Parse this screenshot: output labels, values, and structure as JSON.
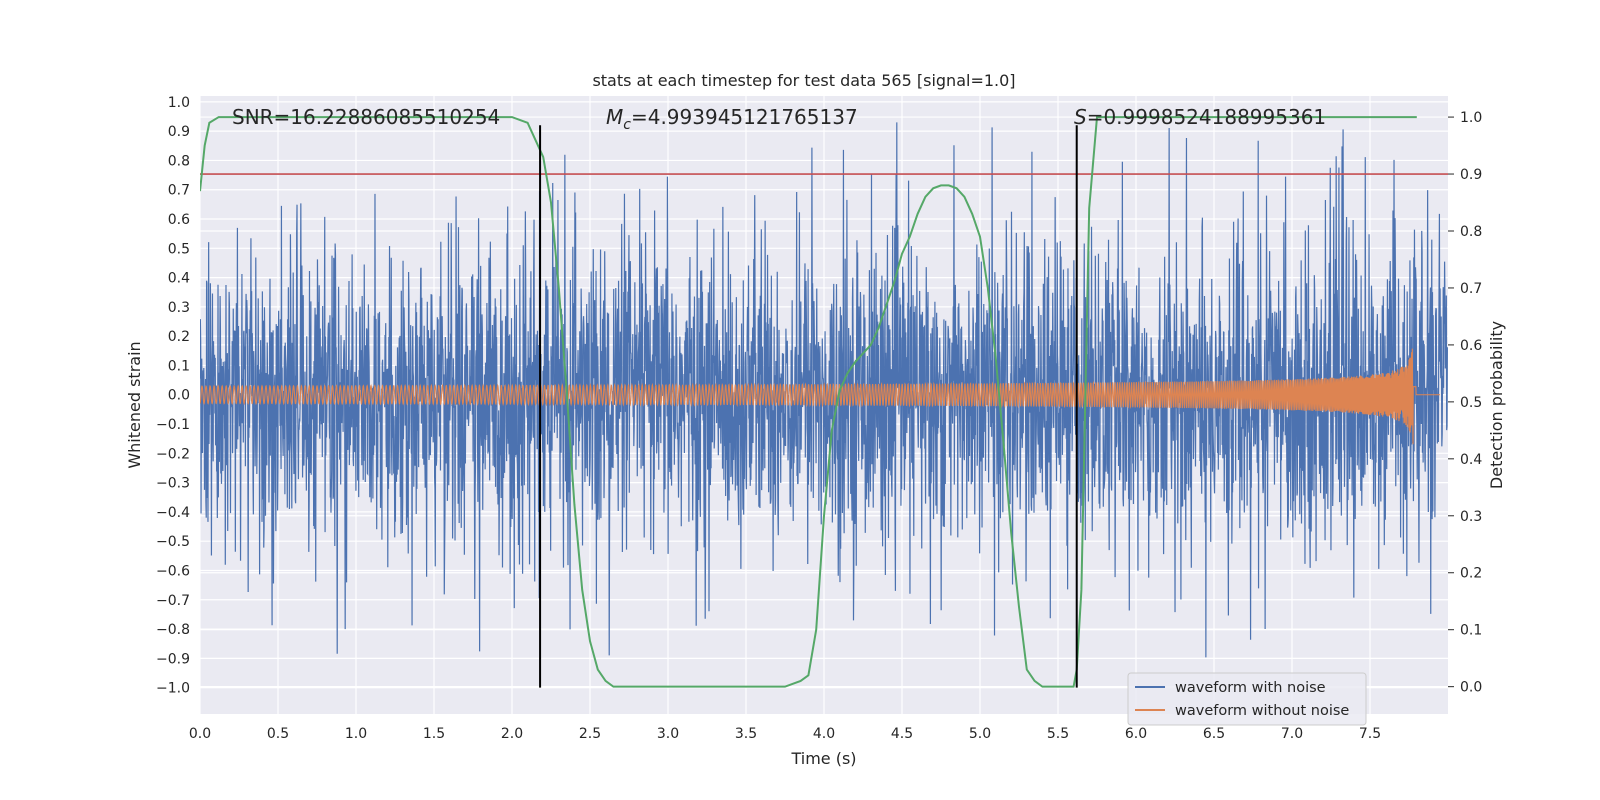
{
  "chart_data": {
    "type": "line",
    "title": "stats at each timestep for test data 565 [signal=1.0]",
    "xlabel": "Time (s)",
    "ylabel_left": "Whitened strain",
    "ylabel_right": "Detection probability",
    "xlim": [
      0.0,
      8.0
    ],
    "ylim_left": [
      -1.09,
      1.02
    ],
    "ylim_right": [
      -0.048,
      1.037
    ],
    "x_ticks": [
      "0.0",
      "0.5",
      "1.0",
      "1.5",
      "2.0",
      "2.5",
      "3.0",
      "3.5",
      "4.0",
      "4.5",
      "5.0",
      "5.5",
      "6.0",
      "6.5",
      "7.0",
      "7.5"
    ],
    "y_ticks_left": [
      "1.0",
      "0.9",
      "0.8",
      "0.7",
      "0.6",
      "0.5",
      "0.4",
      "0.3",
      "0.2",
      "0.1",
      "0.0",
      "−0.1",
      "−0.2",
      "−0.3",
      "−0.4",
      "−0.5",
      "−0.6",
      "−0.7",
      "−0.8",
      "−0.9",
      "−1.0"
    ],
    "y_ticks_right": [
      "1.0",
      "0.9",
      "0.8",
      "0.7",
      "0.6",
      "0.5",
      "0.4",
      "0.3",
      "0.2",
      "0.1",
      "0.0"
    ],
    "annotations": {
      "snr": "SNR=16.22886085510254",
      "mc_symbol": "M",
      "mc_sub": "c",
      "mc_value": "=4.993945121765137",
      "s_symbol": "S",
      "s_value": "=0.9998524188995361"
    },
    "vertical_lines_x": [
      2.18,
      5.62
    ],
    "vertical_lines_range": [
      -1.0,
      0.92
    ],
    "threshold": {
      "value": 0.9,
      "axis": "right",
      "color": "#c44e52"
    },
    "noise_envelope": {
      "typical_amplitude": 0.45,
      "peak_amplitude": 0.93
    },
    "chirp": {
      "amplitude_start": 0.03,
      "amplitude_peak": 0.3,
      "merger_time": 7.78
    },
    "detection_probability": {
      "x": [
        0.0,
        0.03,
        0.06,
        0.12,
        0.2,
        1.0,
        1.5,
        2.0,
        2.1,
        2.2,
        2.25,
        2.3,
        2.35,
        2.4,
        2.45,
        2.5,
        2.55,
        2.6,
        2.65,
        2.75,
        3.0,
        3.5,
        3.75,
        3.85,
        3.9,
        3.95,
        4.0,
        4.05,
        4.1,
        4.15,
        4.2,
        4.3,
        4.35,
        4.4,
        4.45,
        4.5,
        4.55,
        4.6,
        4.65,
        4.7,
        4.75,
        4.8,
        4.85,
        4.9,
        4.95,
        5.0,
        5.05,
        5.1,
        5.15,
        5.2,
        5.25,
        5.3,
        5.35,
        5.4,
        5.45,
        5.55,
        5.6,
        5.62,
        5.65,
        5.7,
        5.75,
        7.8
      ],
      "y": [
        0.87,
        0.95,
        0.99,
        1.0,
        1.0,
        1.0,
        1.0,
        1.0,
        0.99,
        0.93,
        0.85,
        0.7,
        0.52,
        0.32,
        0.17,
        0.08,
        0.03,
        0.01,
        0.0,
        0.0,
        0.0,
        0.0,
        0.0,
        0.01,
        0.02,
        0.1,
        0.3,
        0.45,
        0.52,
        0.55,
        0.57,
        0.6,
        0.63,
        0.67,
        0.71,
        0.76,
        0.79,
        0.83,
        0.86,
        0.875,
        0.88,
        0.88,
        0.875,
        0.86,
        0.83,
        0.79,
        0.7,
        0.58,
        0.43,
        0.27,
        0.14,
        0.03,
        0.01,
        0.0,
        0.0,
        0.0,
        0.0,
        0.03,
        0.17,
        0.84,
        1.0,
        1.0
      ]
    },
    "series": [
      {
        "name": "waveform with noise",
        "color": "#4c72b0"
      },
      {
        "name": "waveform without noise",
        "color": "#dd8452"
      },
      {
        "name": "detection probability",
        "color": "#55a868"
      }
    ]
  }
}
